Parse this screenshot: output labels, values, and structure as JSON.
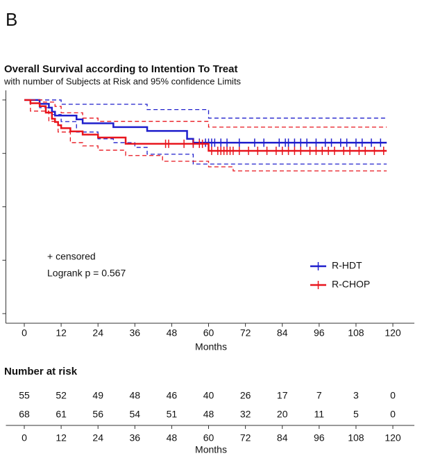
{
  "panel_label": "B",
  "chart_data": {
    "type": "step",
    "title": "Overall Survival according to Intention To Treat",
    "subtitle": "with number of Subjects at Risk and 95% confidence Limits",
    "xlabel": "Months",
    "xlim": [
      -6,
      127
    ],
    "xticks": [
      0,
      12,
      24,
      36,
      48,
      60,
      72,
      84,
      96,
      108,
      120
    ],
    "ylim": [
      -0.045,
      1.045
    ],
    "yticks": [
      0,
      0.25,
      0.5,
      0.75,
      1
    ],
    "annotations": [
      "+ censored",
      "Logrank p = 0.567"
    ],
    "series": [
      {
        "name": "R-HDT",
        "color": "#1f1fcc",
        "x": [
          0,
          5,
          8,
          9,
          10,
          17,
          19,
          29,
          40,
          53,
          55,
          118
        ],
        "values": [
          1,
          0.982,
          0.964,
          0.945,
          0.927,
          0.909,
          0.891,
          0.873,
          0.855,
          0.818,
          0.8,
          0.8
        ],
        "ci": {
          "x": [
            0,
            5,
            9,
            12,
            17,
            24,
            29,
            36,
            40,
            55,
            60,
            118
          ],
          "upper": [
            1,
            1,
            1,
            0.98,
            0.98,
            0.98,
            0.98,
            0.98,
            0.955,
            0.955,
            0.915,
            0.915
          ],
          "lower": [
            1,
            0.964,
            0.932,
            0.899,
            0.85,
            0.818,
            0.8,
            0.778,
            0.746,
            0.7,
            0.7,
            0.7
          ]
        },
        "censored": [
          55,
          57,
          59,
          60,
          61,
          62,
          64,
          66,
          70,
          75,
          78,
          83,
          85,
          86,
          88,
          90,
          92,
          95,
          98,
          100,
          103,
          105,
          108,
          110,
          113,
          116
        ]
      },
      {
        "name": "R-CHOP",
        "color": "#e8141c",
        "x": [
          0,
          2,
          5,
          7,
          9,
          10,
          11,
          12,
          15,
          19,
          24,
          33,
          60,
          118
        ],
        "values": [
          1,
          0.985,
          0.971,
          0.941,
          0.912,
          0.897,
          0.882,
          0.868,
          0.853,
          0.838,
          0.824,
          0.795,
          0.762,
          0.762
        ],
        "ci": {
          "x": [
            0,
            2,
            6,
            8,
            10,
            11,
            12,
            15,
            19,
            24,
            33,
            45,
            60,
            68,
            118
          ],
          "upper": [
            1,
            1,
            0.99,
            0.99,
            0.97,
            0.97,
            0.94,
            0.94,
            0.915,
            0.9,
            0.9,
            0.9,
            0.873,
            0.873,
            0.873
          ],
          "lower": [
            1,
            0.948,
            0.948,
            0.9,
            0.9,
            0.85,
            0.85,
            0.8,
            0.785,
            0.765,
            0.74,
            0.713,
            0.687,
            0.668,
            0.668
          ]
        },
        "censored": [
          46,
          47,
          52,
          55,
          57,
          58,
          61,
          63,
          64,
          65,
          66,
          67,
          68,
          70,
          73,
          76,
          79,
          82,
          84,
          86,
          88,
          90,
          93,
          95,
          97,
          99,
          101,
          104,
          106,
          109,
          111,
          114,
          117
        ]
      }
    ],
    "risk_table": {
      "title": "Number at risk",
      "rows": [
        [
          55,
          52,
          49,
          48,
          46,
          40,
          26,
          17,
          7,
          3,
          0
        ],
        [
          68,
          61,
          56,
          54,
          51,
          48,
          32,
          20,
          11,
          5,
          0
        ]
      ]
    }
  }
}
